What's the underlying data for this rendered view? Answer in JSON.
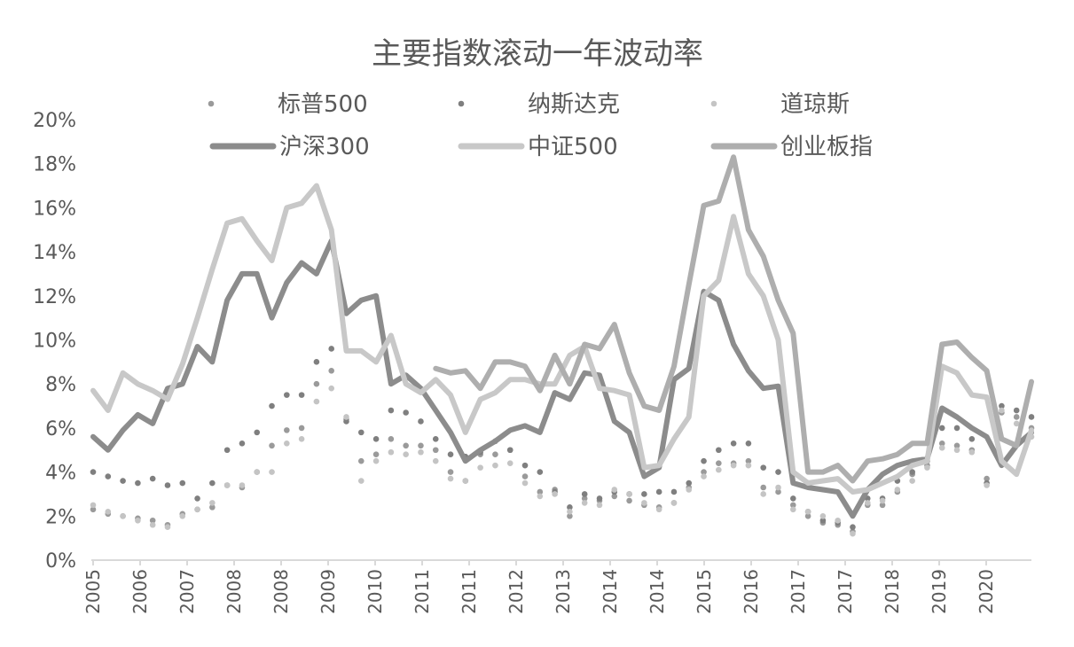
{
  "chart_data": {
    "type": "line",
    "title": "主要指数滚动一年波动率",
    "xlabel": "",
    "ylabel": "",
    "ylim": [
      0,
      20
    ],
    "y_ticks": [
      "0%",
      "2%",
      "4%",
      "6%",
      "8%",
      "10%",
      "12%",
      "14%",
      "16%",
      "18%",
      "20%"
    ],
    "x_tick_labels": [
      "2005",
      "2006",
      "2007",
      "2008",
      "2008",
      "2009",
      "2010",
      "2011",
      "2011",
      "2012",
      "2013",
      "2014",
      "2014",
      "2015",
      "2016",
      "2017",
      "2017",
      "2018",
      "2019",
      "2020"
    ],
    "grid": false,
    "legend_placement": "top",
    "x": [
      2005.0,
      2005.25,
      2005.5,
      2005.75,
      2006.0,
      2006.25,
      2006.5,
      2006.75,
      2007.0,
      2007.25,
      2007.5,
      2007.75,
      2008.0,
      2008.25,
      2008.5,
      2008.75,
      2009.0,
      2009.25,
      2009.5,
      2009.75,
      2010.0,
      2010.25,
      2010.5,
      2010.75,
      2011.0,
      2011.25,
      2011.5,
      2011.75,
      2012.0,
      2012.25,
      2012.5,
      2012.75,
      2013.0,
      2013.25,
      2013.5,
      2013.75,
      2014.0,
      2014.25,
      2014.5,
      2014.75,
      2015.0,
      2015.25,
      2015.5,
      2015.75,
      2016.0,
      2016.25,
      2016.5,
      2016.75,
      2017.0,
      2017.25,
      2017.5,
      2017.75,
      2018.0,
      2018.25,
      2018.5,
      2018.75,
      2019.0,
      2019.25,
      2019.5,
      2019.75,
      2020.0,
      2020.25,
      2020.5,
      2020.75
    ],
    "series": [
      {
        "name": "标普500",
        "style": "dots",
        "color": "#9a9a9a",
        "values": [
          2.3,
          2.1,
          2.0,
          1.9,
          1.8,
          1.6,
          2.1,
          2.3,
          2.4,
          3.4,
          3.3,
          4.0,
          5.2,
          5.9,
          6.0,
          8.0,
          8.6,
          6.4,
          4.5,
          4.8,
          5.5,
          5.2,
          5.2,
          5.0,
          4.0,
          3.6,
          4.8,
          4.8,
          5.0,
          3.8,
          3.1,
          3.2,
          2.0,
          2.8,
          2.7,
          2.9,
          2.7,
          2.5,
          2.4,
          2.6,
          3.3,
          4.0,
          4.4,
          4.4,
          4.5,
          3.3,
          3.1,
          2.5,
          2.0,
          1.7,
          1.6,
          1.3,
          2.5,
          2.5,
          3.1,
          3.9,
          4.3,
          5.3,
          5.2,
          5.0,
          3.7,
          6.7,
          6.5,
          6.0
        ]
      },
      {
        "name": "纳斯达克",
        "style": "dots",
        "color": "#7f7f7f",
        "values": [
          4.0,
          3.8,
          3.6,
          3.5,
          3.7,
          3.4,
          3.5,
          2.8,
          3.5,
          5.0,
          5.3,
          5.8,
          7.0,
          7.5,
          7.5,
          9.0,
          9.6,
          6.3,
          5.8,
          5.5,
          6.8,
          6.7,
          6.3,
          5.5,
          4.8,
          4.7,
          4.9,
          5.4,
          5.0,
          4.3,
          4.0,
          3.1,
          2.4,
          3.0,
          2.8,
          3.1,
          3.0,
          3.0,
          3.1,
          3.1,
          3.5,
          4.5,
          5.0,
          5.3,
          5.3,
          4.2,
          4.0,
          2.8,
          2.2,
          1.8,
          1.7,
          1.5,
          2.8,
          2.8,
          3.6,
          4.0,
          4.5,
          6.0,
          6.0,
          5.5,
          3.5,
          7.0,
          6.8,
          6.5
        ]
      },
      {
        "name": "道琼斯",
        "style": "dots",
        "color": "#c4c4c4",
        "values": [
          2.5,
          2.2,
          2.0,
          1.8,
          1.6,
          1.5,
          2.0,
          2.3,
          2.6,
          3.4,
          3.4,
          4.0,
          4.0,
          5.3,
          5.5,
          7.2,
          7.8,
          6.5,
          3.6,
          4.5,
          4.9,
          4.8,
          4.9,
          4.5,
          3.7,
          3.6,
          4.2,
          4.3,
          4.4,
          3.5,
          2.9,
          3.0,
          2.2,
          2.6,
          2.5,
          3.2,
          3.0,
          2.6,
          2.3,
          2.6,
          3.2,
          3.8,
          4.1,
          4.3,
          4.3,
          3.0,
          3.3,
          2.3,
          2.2,
          2.0,
          1.8,
          1.2,
          2.6,
          2.7,
          3.2,
          3.6,
          4.2,
          5.1,
          5.0,
          4.9,
          3.4,
          6.8,
          6.2,
          5.6
        ]
      },
      {
        "name": "沪深300",
        "style": "line",
        "color": "#8c8c8c",
        "values": [
          5.6,
          5.0,
          5.9,
          6.6,
          6.2,
          7.8,
          8.0,
          9.7,
          9.0,
          11.8,
          13.0,
          13.0,
          11.0,
          12.6,
          13.5,
          13.0,
          14.5,
          11.2,
          11.8,
          12.0,
          8.0,
          8.4,
          7.8,
          6.8,
          5.8,
          4.5,
          5.0,
          5.4,
          5.9,
          6.1,
          5.8,
          7.6,
          7.3,
          8.5,
          8.4,
          6.3,
          5.8,
          3.8,
          4.2,
          8.2,
          8.7,
          12.2,
          11.8,
          9.8,
          8.6,
          7.8,
          7.9,
          3.5,
          3.3,
          3.2,
          3.1,
          2.0,
          3.2,
          3.9,
          4.3,
          4.5,
          4.6,
          6.9,
          6.5,
          6.0,
          5.6,
          4.3,
          5.2,
          5.8
        ]
      },
      {
        "name": "中证500",
        "style": "line",
        "color": "#c8c8c8",
        "values": [
          7.7,
          6.8,
          8.5,
          8.0,
          7.7,
          7.3,
          8.9,
          11.0,
          13.2,
          15.3,
          15.5,
          14.5,
          13.6,
          16.0,
          16.2,
          17.0,
          15.0,
          9.5,
          9.5,
          9.0,
          10.2,
          8.0,
          7.6,
          8.2,
          7.5,
          5.8,
          7.3,
          7.6,
          8.2,
          8.2,
          8.0,
          8.0,
          9.3,
          9.7,
          7.8,
          7.7,
          7.5,
          4.2,
          4.3,
          5.5,
          6.5,
          12.0,
          12.7,
          15.6,
          13.0,
          12.0,
          10.0,
          4.0,
          3.5,
          3.6,
          3.7,
          3.1,
          3.2,
          3.5,
          3.8,
          4.3,
          4.5,
          8.8,
          8.5,
          7.5,
          7.4,
          4.5,
          3.9,
          5.9
        ]
      },
      {
        "name": "创业板指",
        "style": "line",
        "color": "#aeaeae",
        "values": [
          null,
          null,
          null,
          null,
          null,
          null,
          null,
          null,
          null,
          null,
          null,
          null,
          null,
          null,
          null,
          null,
          null,
          null,
          null,
          null,
          null,
          null,
          null,
          8.7,
          8.5,
          8.6,
          7.8,
          9.0,
          9.0,
          8.8,
          7.7,
          9.3,
          8.0,
          9.8,
          9.6,
          10.7,
          8.5,
          7.0,
          6.8,
          8.8,
          12.5,
          16.1,
          16.3,
          18.3,
          15.0,
          13.8,
          11.8,
          10.3,
          4.0,
          4.0,
          4.3,
          3.6,
          4.5,
          4.6,
          4.8,
          5.3,
          5.3,
          9.8,
          9.9,
          9.2,
          8.6,
          5.5,
          5.2,
          8.1
        ]
      }
    ]
  }
}
